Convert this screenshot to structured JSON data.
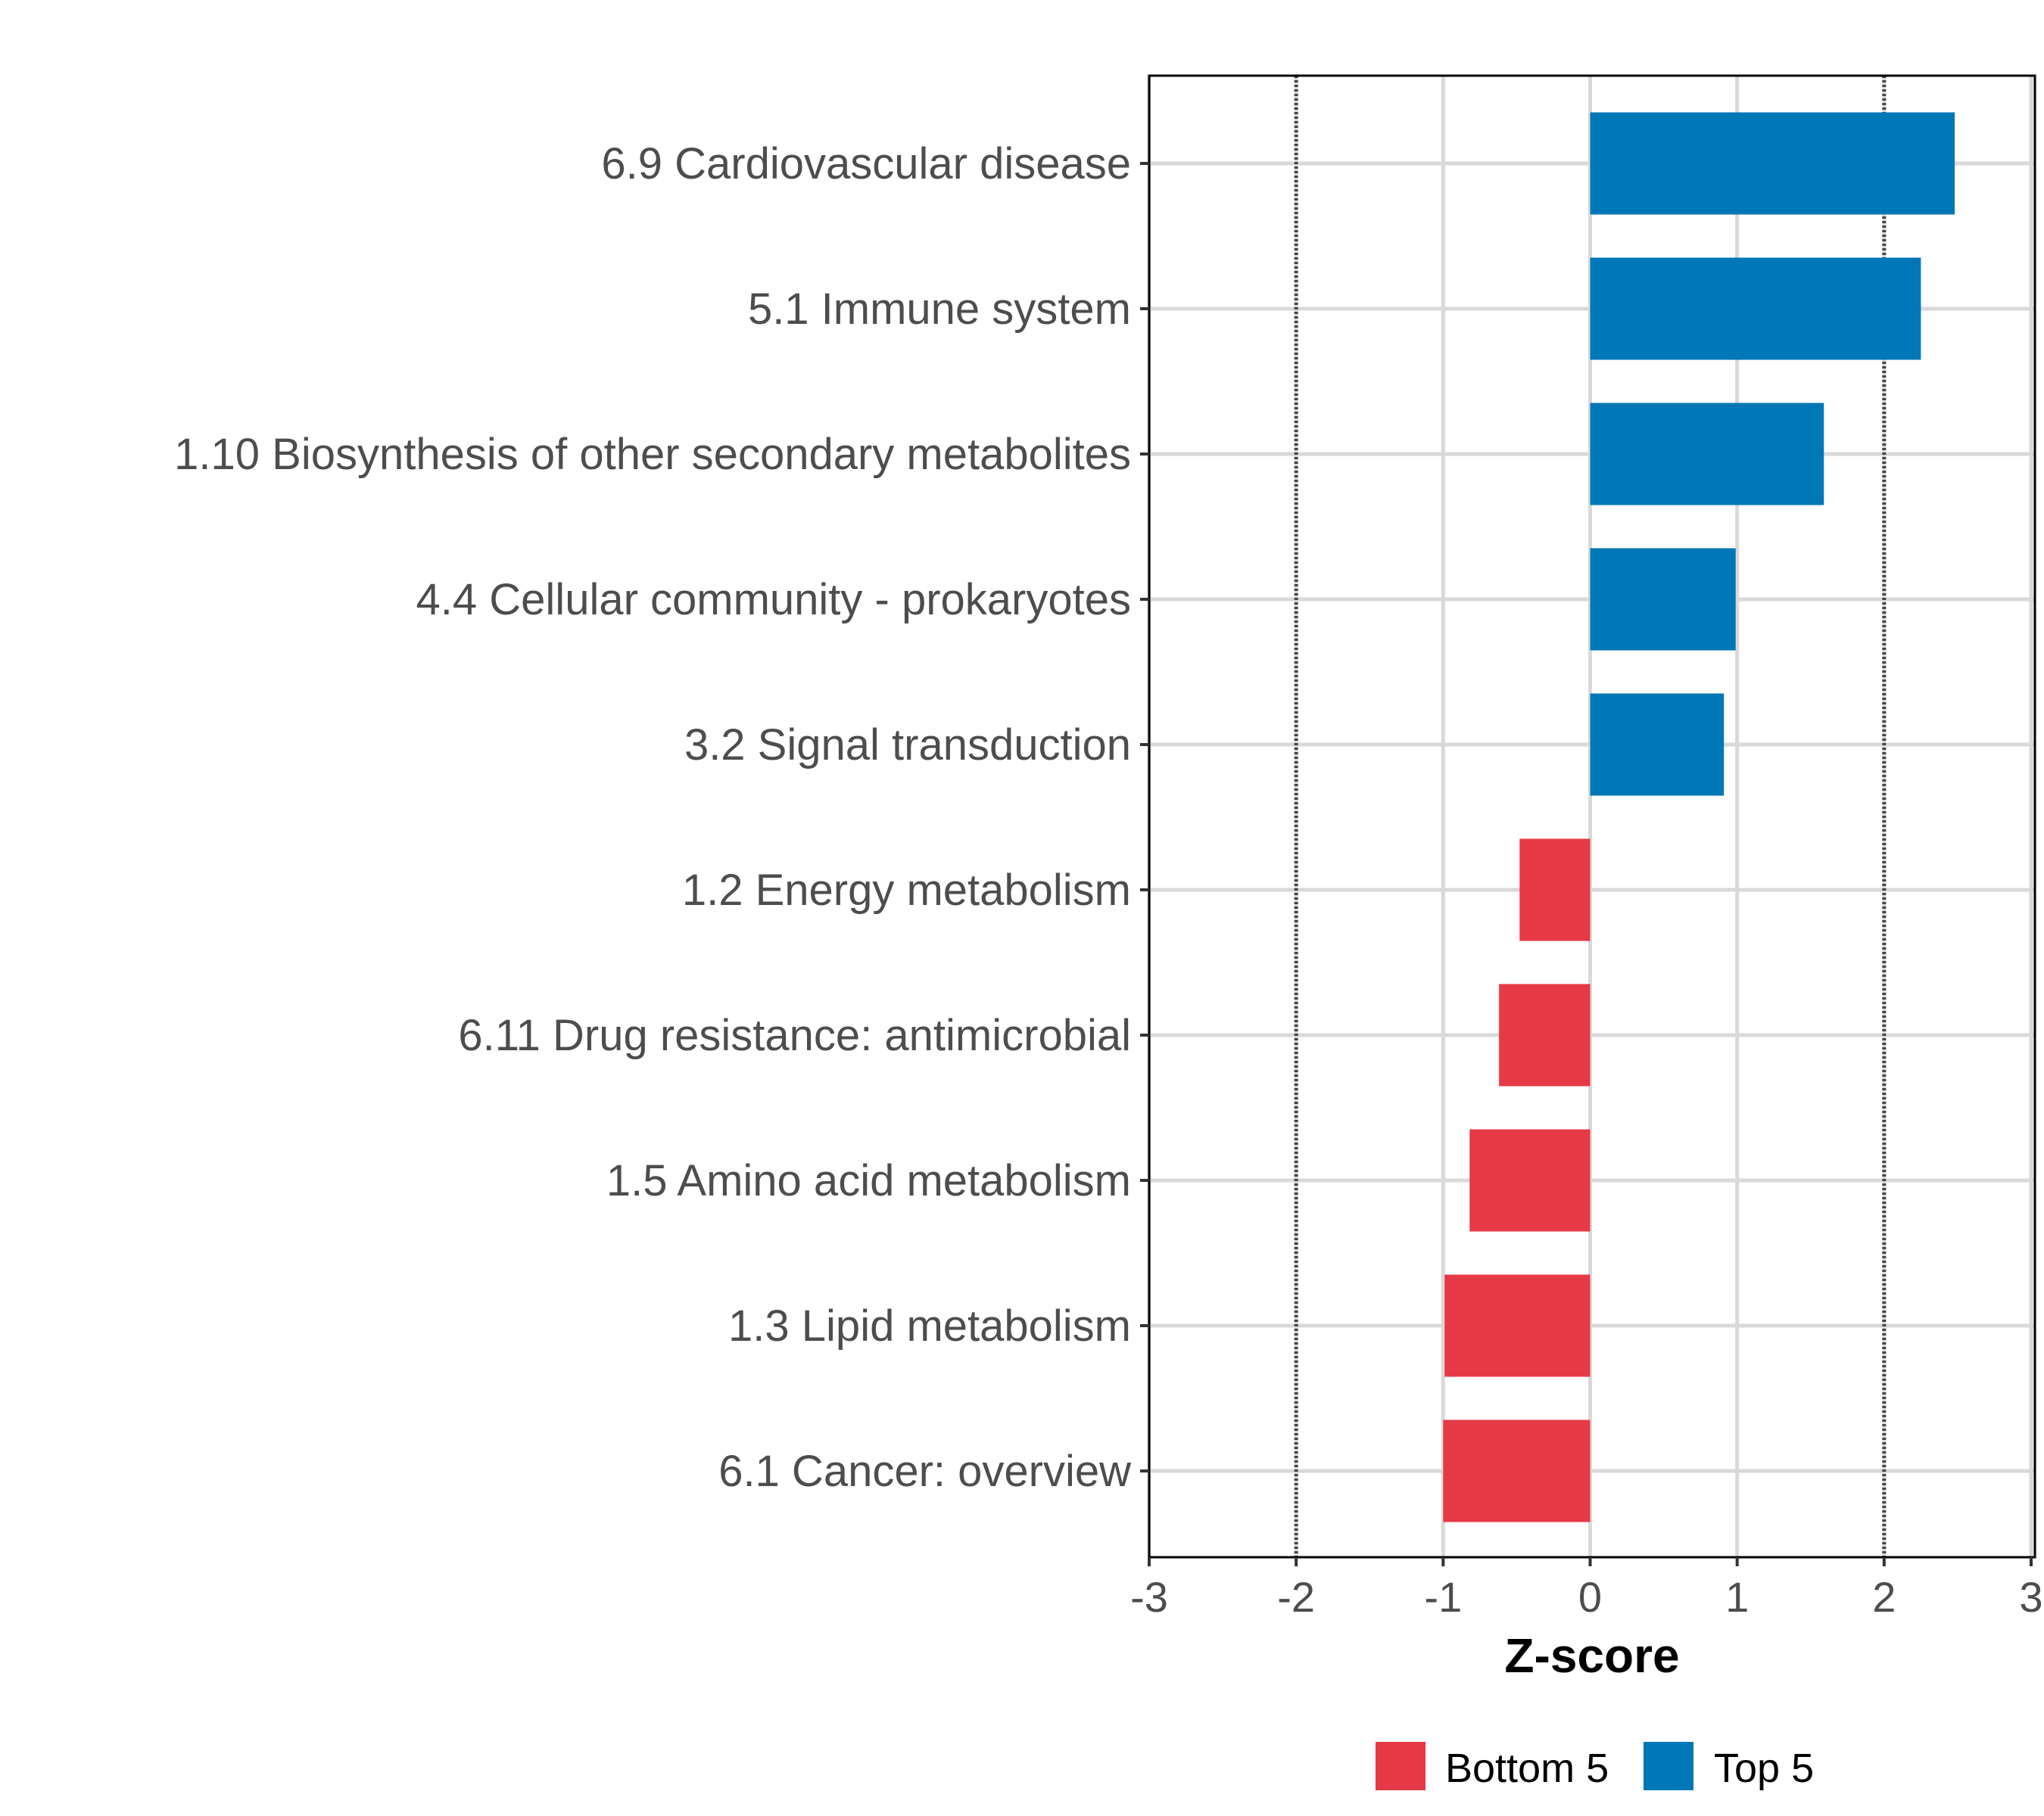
{
  "chart_data": {
    "type": "bar",
    "orientation": "horizontal",
    "title": "",
    "xlabel": "Z-score",
    "ylabel": "",
    "xlim": [
      -3,
      3
    ],
    "xticks": [
      "-3",
      "-2",
      "-1",
      "0",
      "1",
      "2",
      "3"
    ],
    "grid": true,
    "reference_lines": [
      -2,
      2
    ],
    "categories": [
      "6.9 Cardiovascular disease",
      "5.1 Immune system",
      "1.10 Biosynthesis of other secondary metabolites",
      "4.4 Cellular community - prokaryotes",
      "3.2 Signal transduction",
      "1.2 Energy metabolism",
      "6.11 Drug resistance: antimicrobial",
      "1.5 Amino acid metabolism",
      "1.3 Lipid metabolism",
      "6.1 Cancer: overview"
    ],
    "values": [
      2.48,
      2.25,
      1.59,
      0.99,
      0.91,
      -0.48,
      -0.62,
      -0.82,
      -0.99,
      -1.0
    ],
    "groups": [
      "Top 5",
      "Top 5",
      "Top 5",
      "Top 5",
      "Top 5",
      "Bottom 5",
      "Bottom 5",
      "Bottom 5",
      "Bottom 5",
      "Bottom 5"
    ],
    "legend": {
      "position": "bottom",
      "entries": [
        {
          "label": "Bottom 5",
          "color": "#E63946"
        },
        {
          "label": "Top 5",
          "color": "#0077B6"
        }
      ]
    }
  }
}
